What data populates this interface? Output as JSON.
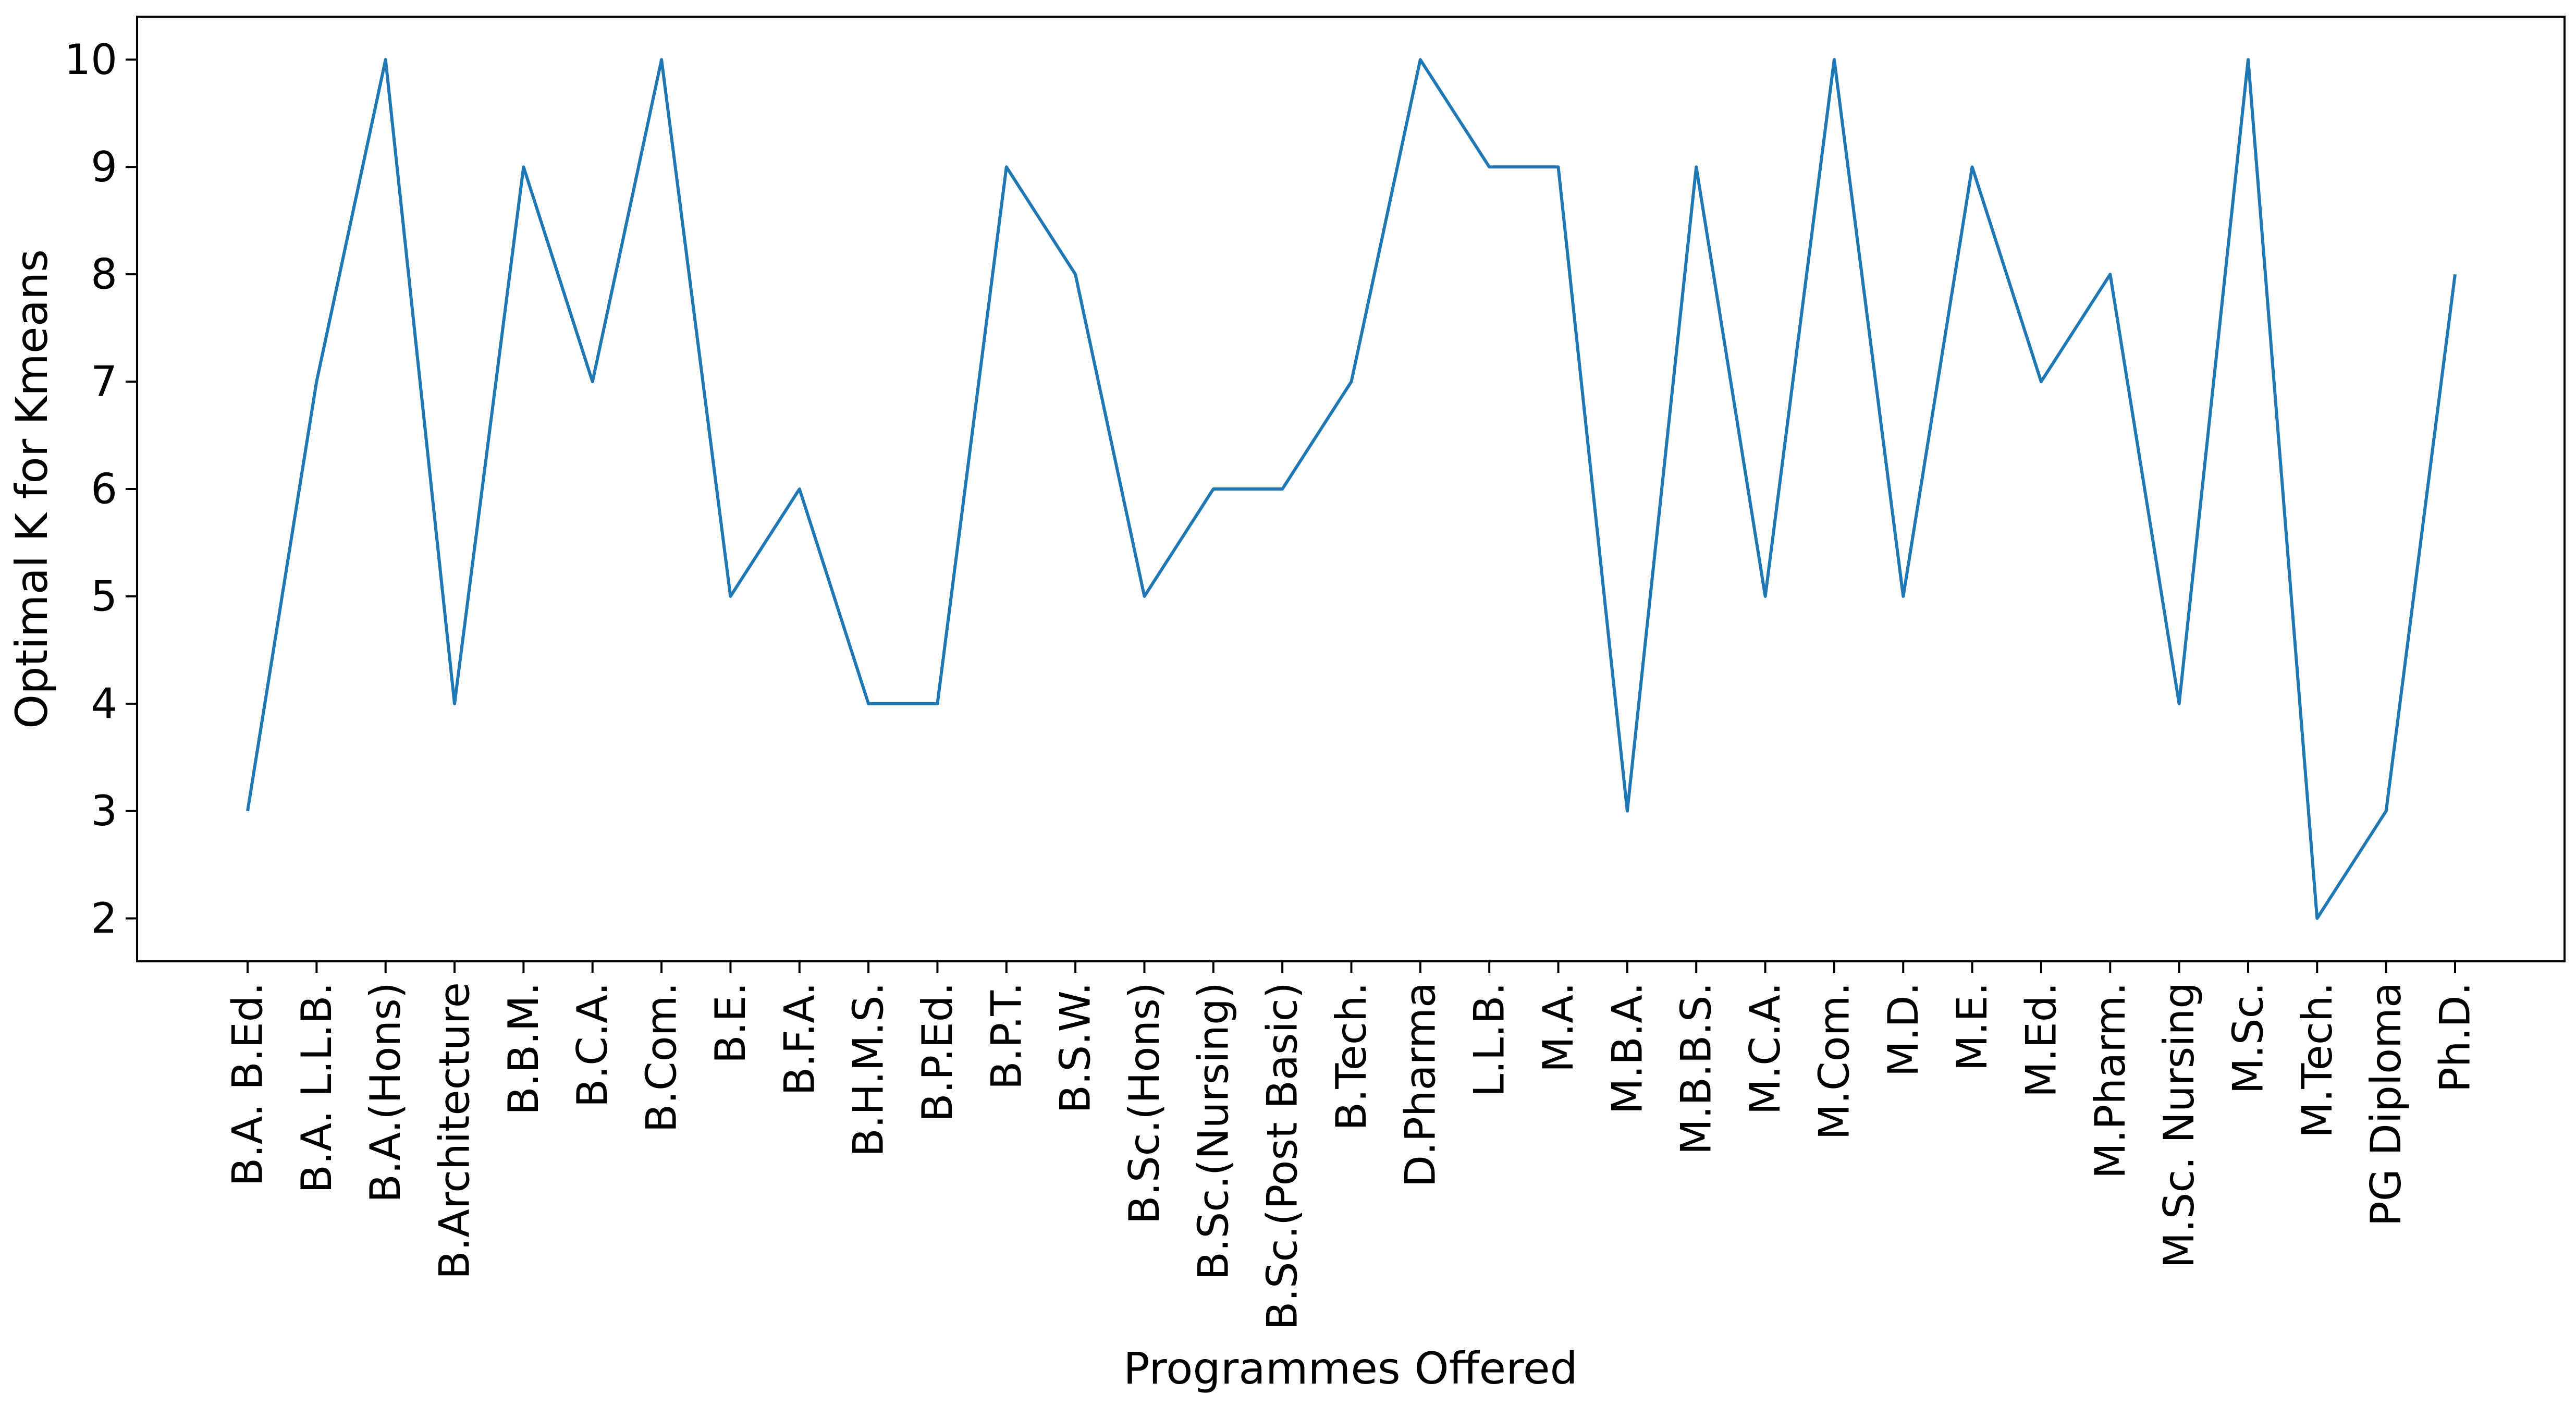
{
  "chart_data": {
    "type": "line",
    "title": "",
    "xlabel": "Programmes Offered",
    "ylabel": "Optimal K for Kmeans",
    "ylim": [
      1.6,
      10.4
    ],
    "yticks": [
      2,
      3,
      4,
      5,
      6,
      7,
      8,
      9,
      10
    ],
    "grid": false,
    "line_color": "#1f77b4",
    "categories": [
      "B.A. B.Ed.",
      "B.A. L.L.B.",
      "B.A.(Hons)",
      "B.Architecture",
      "B.B.M.",
      "B.C.A.",
      "B.Com.",
      "B.E.",
      "B.F.A.",
      "B.H.M.S.",
      "B.P.Ed.",
      "B.P.T.",
      "B.S.W.",
      "B.Sc.(Hons)",
      "B.Sc.(Nursing)",
      "B.Sc.(Post Basic)",
      "B.Tech.",
      "D.Pharma",
      "L.L.B.",
      "M.A.",
      "M.B.A.",
      "M.B.B.S.",
      "M.C.A.",
      "M.Com.",
      "M.D.",
      "M.E.",
      "M.Ed.",
      "M.Pharm.",
      "M.Sc. Nursing",
      "M.Sc.",
      "M.Tech.",
      "PG Diploma",
      "Ph.D."
    ],
    "values": [
      3,
      7,
      10,
      4,
      9,
      7,
      10,
      5,
      6,
      4,
      4,
      9,
      8,
      5,
      6,
      6,
      7,
      10,
      9,
      9,
      3,
      9,
      5,
      10,
      5,
      9,
      7,
      8,
      4,
      10,
      2,
      3,
      8
    ]
  }
}
